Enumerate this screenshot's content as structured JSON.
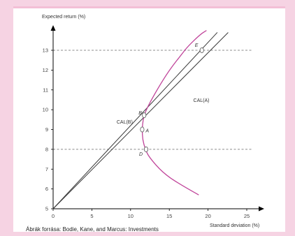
{
  "source_note": "Ábrák forrása: Bodie, Kane, and Marcus: Investments",
  "chart_data": {
    "type": "line",
    "ylabel": "Expected return (%)",
    "xlabel": "Standard deviation (%)",
    "xlim": [
      0,
      25
    ],
    "ylim": [
      5,
      14
    ],
    "x_ticks": [
      "0",
      "5",
      "10",
      "15",
      "20",
      "25"
    ],
    "y_ticks": [
      "5",
      "6",
      "7",
      "8",
      "9",
      "10",
      "11",
      "12",
      "13"
    ],
    "series": [
      {
        "name": "CAL(A)",
        "kind": "capital-allocation-line",
        "points": [
          [
            0,
            5
          ],
          [
            22.6,
            13.9
          ]
        ]
      },
      {
        "name": "CAL(B)",
        "kind": "capital-allocation-line",
        "points": [
          [
            0,
            5
          ],
          [
            21.2,
            13.9
          ]
        ]
      },
      {
        "kind": "efficient-frontier",
        "points": [
          [
            18.8,
            5.7
          ],
          [
            16.5,
            6.2
          ],
          [
            14.2,
            6.8
          ],
          [
            12.4,
            7.6
          ],
          [
            11.9,
            8.0
          ],
          [
            11.55,
            8.5
          ],
          [
            11.5,
            9.0
          ],
          [
            11.6,
            9.5
          ],
          [
            12.0,
            10.0
          ],
          [
            13.4,
            11.0
          ],
          [
            15.0,
            12.0
          ],
          [
            16.6,
            12.8
          ],
          [
            17.4,
            13.2
          ],
          [
            19.0,
            13.8
          ],
          [
            19.8,
            14.0
          ]
        ]
      }
    ],
    "reference_lines": [
      {
        "axis": "y",
        "value": 13,
        "style": "dashed"
      },
      {
        "axis": "y",
        "value": 8,
        "style": "dashed"
      }
    ],
    "points": [
      {
        "label": "A",
        "x": 11.5,
        "y": 9.0
      },
      {
        "label": "B",
        "x": 11.75,
        "y": 9.72
      },
      {
        "label": "D",
        "x": 12.0,
        "y": 8.0
      },
      {
        "label": "E",
        "x": 19.2,
        "y": 13.0
      }
    ],
    "annotations": [
      {
        "text": "CAL(A)",
        "x": 18.1,
        "y": 10.4
      },
      {
        "text": "CAL(B)",
        "x": 8.2,
        "y": 9.3
      }
    ],
    "colors": {
      "frontier": "#c0449a",
      "cal": "#3a3a3a",
      "axis": "#000000",
      "background": "#f6d3e3"
    }
  }
}
